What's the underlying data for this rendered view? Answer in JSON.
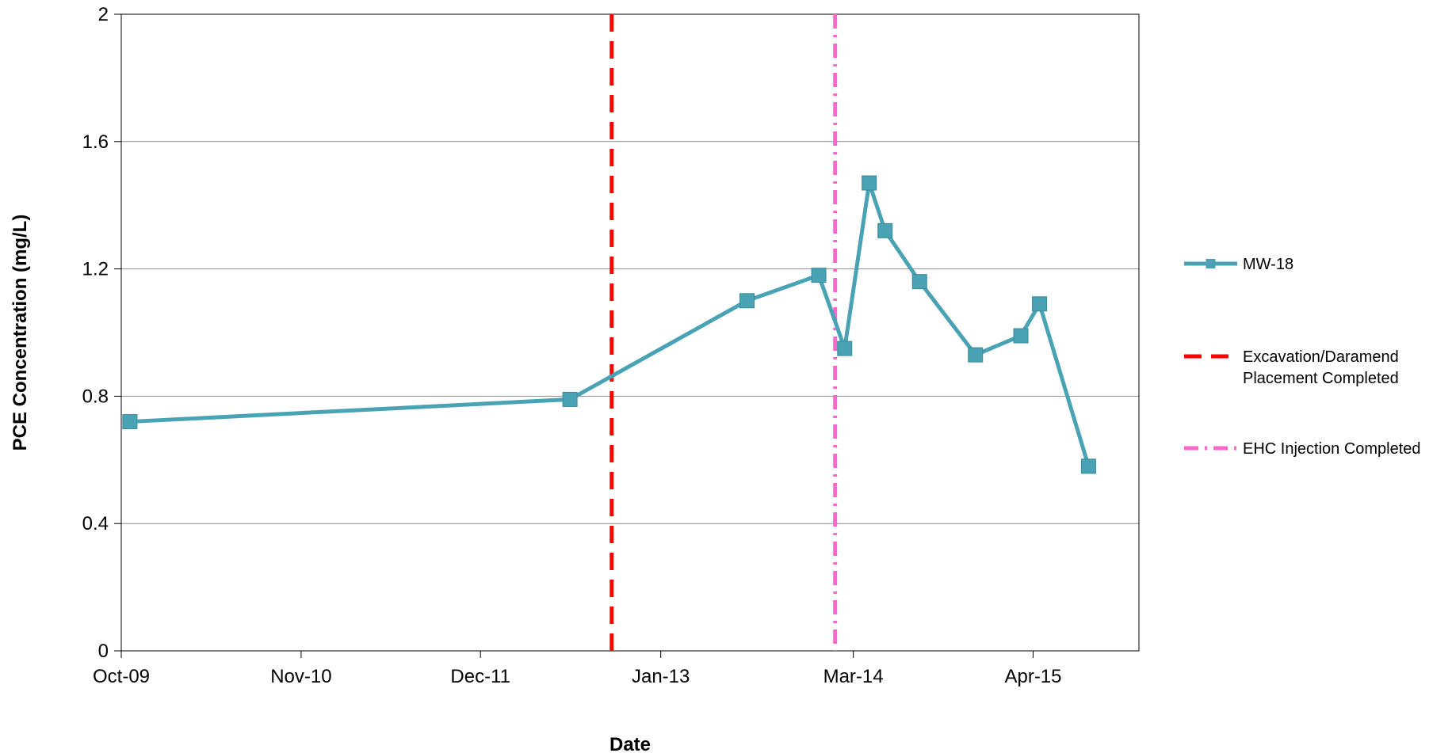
{
  "chart_data": {
    "type": "line",
    "xlabel": "Date",
    "ylabel": "PCE Concentration (mg/L)",
    "ylim": [
      0,
      2
    ],
    "yticks": [
      "0",
      "0.4",
      "0.8",
      "1.2",
      "1.6",
      "2"
    ],
    "xlim": [
      "2009-10-01",
      "2015-11-20"
    ],
    "xticks": [
      {
        "date": "2009-10-01",
        "label": "Oct-09"
      },
      {
        "date": "2010-11-01",
        "label": "Nov-10"
      },
      {
        "date": "2011-12-01",
        "label": "Dec-11"
      },
      {
        "date": "2013-01-01",
        "label": "Jan-13"
      },
      {
        "date": "2014-03-01",
        "label": "Mar-14"
      },
      {
        "date": "2015-04-01",
        "label": "Apr-15"
      }
    ],
    "grid": true,
    "legend_position": "right",
    "series": [
      {
        "name": "MW-18",
        "color": "#4aa3b5",
        "marker": "square",
        "x": [
          "2009-10-20",
          "2012-06-15",
          "2013-07-10",
          "2013-12-15",
          "2014-02-10",
          "2014-04-05",
          "2014-05-10",
          "2014-07-25",
          "2014-11-25",
          "2015-03-05",
          "2015-04-15",
          "2015-08-01"
        ],
        "y": [
          0.72,
          0.79,
          1.1,
          1.18,
          0.95,
          1.47,
          1.32,
          1.16,
          0.93,
          0.99,
          1.09,
          0.58
        ]
      }
    ],
    "vlines": [
      {
        "name": "Excavation/Daramend Placement Completed",
        "label_lines": [
          "Excavation/Daramend",
          "Placement Completed"
        ],
        "date": "2012-09-15",
        "color": "#ff0000",
        "style": "dashed"
      },
      {
        "name": "EHC Injection Completed",
        "label_lines": [
          "EHC Injection Completed"
        ],
        "date": "2014-01-20",
        "color": "#ff66cc",
        "style": "dash-dot"
      }
    ]
  }
}
